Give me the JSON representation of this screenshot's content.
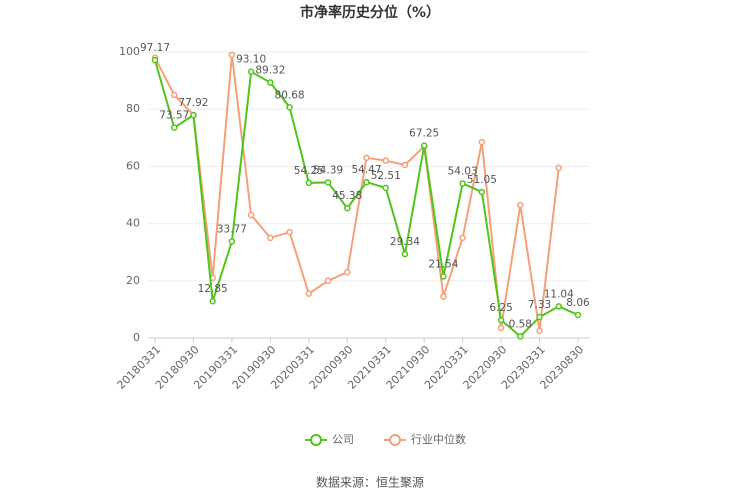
{
  "chart_data": {
    "type": "line",
    "title": "市净率历史分位（%）",
    "categories": [
      "20180331",
      null,
      "20180930",
      null,
      "20190331",
      null,
      "20190930",
      null,
      "20200331",
      null,
      "20200930",
      null,
      "20210331",
      null,
      "20210930",
      null,
      "20220331",
      null,
      "20220930",
      null,
      "20230331",
      null,
      "20230830"
    ],
    "series": [
      {
        "name": "公司",
        "color": "#52c41a",
        "values": [
          97.17,
          73.57,
          77.92,
          12.85,
          33.77,
          93.1,
          89.32,
          80.68,
          54.25,
          54.39,
          45.38,
          54.47,
          52.51,
          29.34,
          67.25,
          21.54,
          54.03,
          51.05,
          6.25,
          0.58,
          7.33,
          11.04,
          8.06
        ],
        "value_labels": [
          "97.17",
          "73.57",
          "77.92",
          "12.85",
          "33.77",
          "93.10",
          "89.32",
          "80.68",
          "54.25",
          "54.39",
          "45.38",
          "54.47",
          "52.51",
          "29.34",
          "67.25",
          "21.54",
          "54.03",
          "51.05",
          "6.25",
          "0.58",
          "7.33",
          "11.04",
          "8.06"
        ]
      },
      {
        "name": "行业中位数",
        "color": "#f4a07a",
        "values": [
          98,
          85,
          78,
          21,
          99,
          43,
          35,
          37,
          15.5,
          20,
          23,
          63,
          62,
          60.5,
          67,
          14.5,
          35,
          68.5,
          3.5,
          46.5,
          2.5,
          59.5,
          null
        ]
      }
    ],
    "ylim": [
      0,
      100
    ],
    "yticks": [
      0,
      20,
      40,
      60,
      80,
      100
    ],
    "grid": true,
    "source": "数据来源：恒生聚源"
  }
}
